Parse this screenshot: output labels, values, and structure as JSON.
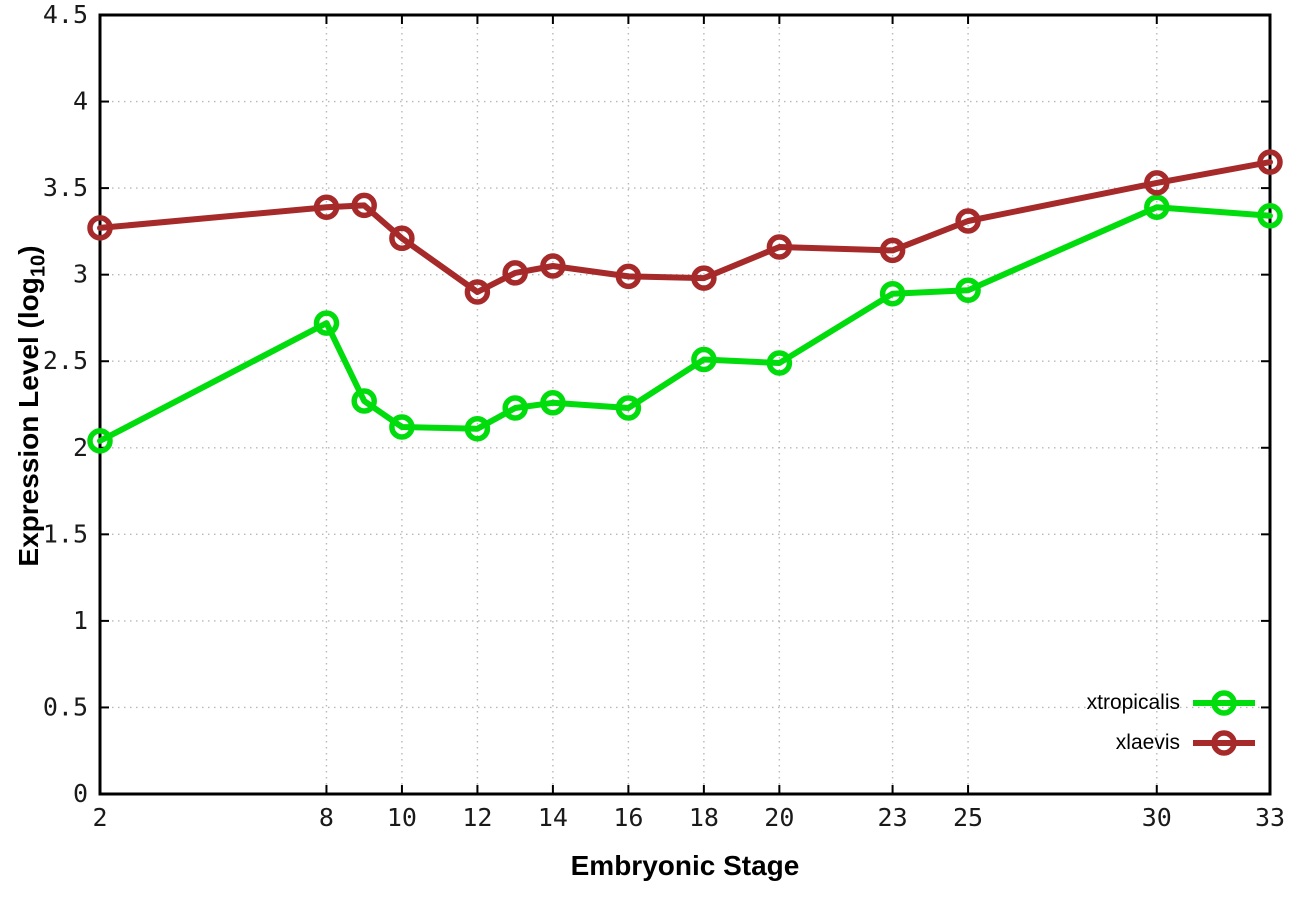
{
  "chart_data": {
    "type": "line",
    "title": "",
    "xlabel": "Embryonic Stage",
    "ylabel": "Expression Level (log10)",
    "ylabel_parts": {
      "prefix": "Expression Level (log",
      "subscript": "10",
      "suffix": ")"
    },
    "x_ticks": [
      2,
      8,
      10,
      12,
      14,
      16,
      18,
      20,
      23,
      25,
      30,
      33
    ],
    "y_ticks": [
      0,
      0.5,
      1,
      1.5,
      2,
      2.5,
      3,
      3.5,
      4,
      4.5
    ],
    "xlim": [
      2,
      33
    ],
    "ylim": [
      0,
      4.5
    ],
    "grid": "dotted",
    "grid_color": "#b8b8b8",
    "border_color": "#000000",
    "background": "#ffffff",
    "legend": {
      "position": "inside-bottom-right",
      "entries": [
        "xtropicalis",
        "xlaevis"
      ]
    },
    "x": [
      2,
      8,
      9,
      10,
      12,
      13,
      14,
      16,
      18,
      20,
      23,
      25,
      30,
      33
    ],
    "series": [
      {
        "name": "xtropicalis",
        "color": "#00dc0c",
        "marker": "open-circle",
        "y": [
          2.04,
          2.72,
          2.27,
          2.12,
          2.11,
          2.23,
          2.26,
          2.23,
          2.51,
          2.49,
          2.89,
          2.91,
          3.39,
          3.34
        ]
      },
      {
        "name": "xlaevis",
        "color": "#a62a2a",
        "marker": "open-circle",
        "y": [
          3.27,
          3.39,
          3.4,
          3.21,
          2.9,
          3.01,
          3.05,
          2.99,
          2.98,
          3.16,
          3.14,
          3.31,
          3.53,
          3.65
        ]
      }
    ]
  }
}
